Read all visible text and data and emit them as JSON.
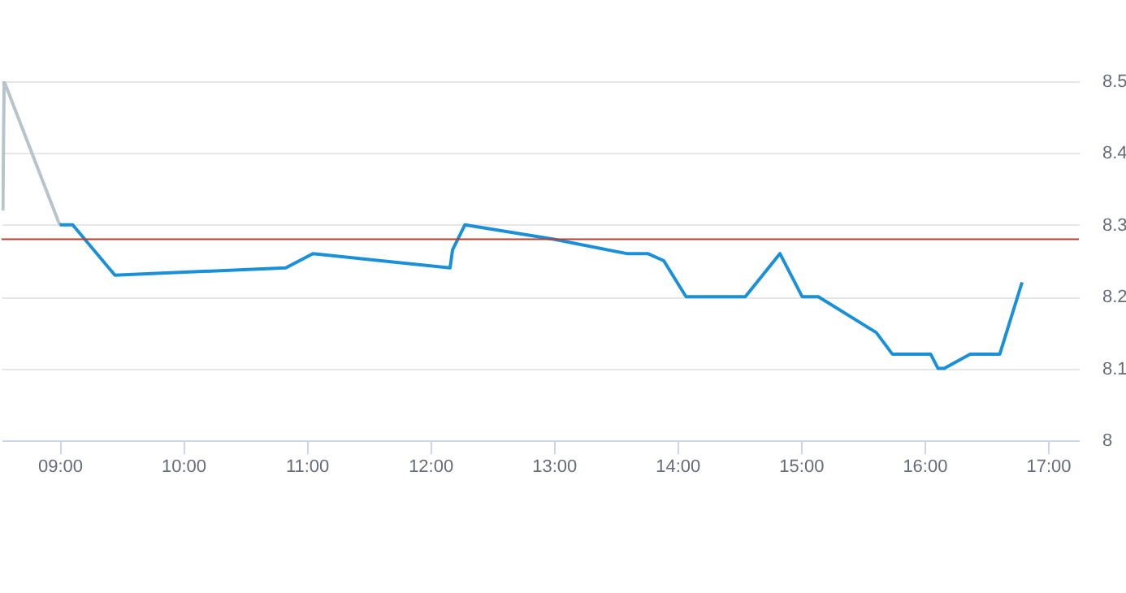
{
  "chart_data": {
    "type": "line",
    "grid": "y",
    "legend": false,
    "marker": "none",
    "line_style": "solid",
    "xlim": [
      8.53,
      17.25
    ],
    "ylim": [
      8,
      8.5
    ],
    "xticks": [
      {
        "value": 9,
        "label": "09:00"
      },
      {
        "value": 10,
        "label": "10:00"
      },
      {
        "value": 11,
        "label": "11:00"
      },
      {
        "value": 12,
        "label": "12:00"
      },
      {
        "value": 13,
        "label": "13:00"
      },
      {
        "value": 14,
        "label": "14:00"
      },
      {
        "value": 15,
        "label": "15:00"
      },
      {
        "value": 16,
        "label": "16:00"
      },
      {
        "value": 17,
        "label": "17:00"
      }
    ],
    "yticks": [
      8,
      8.1,
      8.2,
      8.3,
      8.4,
      8.5
    ],
    "ref_lines": [
      {
        "axis": "y",
        "value": 8.28,
        "color": "#c0392b"
      }
    ],
    "series": [
      {
        "color": "#b8c4cc",
        "x": [
          8.54,
          8.55,
          9.0
        ],
        "values": [
          8.32,
          8.5,
          8.3
        ]
      },
      {
        "color": "#1a90d8",
        "x": [
          9.0,
          9.105,
          9.447,
          10.83,
          11.05,
          12.16,
          12.18,
          12.28,
          13.0,
          13.59,
          13.76,
          13.89,
          14.07,
          14.55,
          14.83,
          15.01,
          15.14,
          15.61,
          15.74,
          16.05,
          16.11,
          16.16,
          16.37,
          16.61,
          16.79
        ],
        "values": [
          8.3,
          8.3,
          8.23,
          8.24,
          8.26,
          8.24,
          8.265,
          8.3,
          8.28,
          8.26,
          8.26,
          8.25,
          8.2,
          8.2,
          8.26,
          8.2,
          8.2,
          8.15,
          8.12,
          8.12,
          8.1,
          8.1,
          8.12,
          8.12,
          8.22
        ]
      }
    ]
  }
}
